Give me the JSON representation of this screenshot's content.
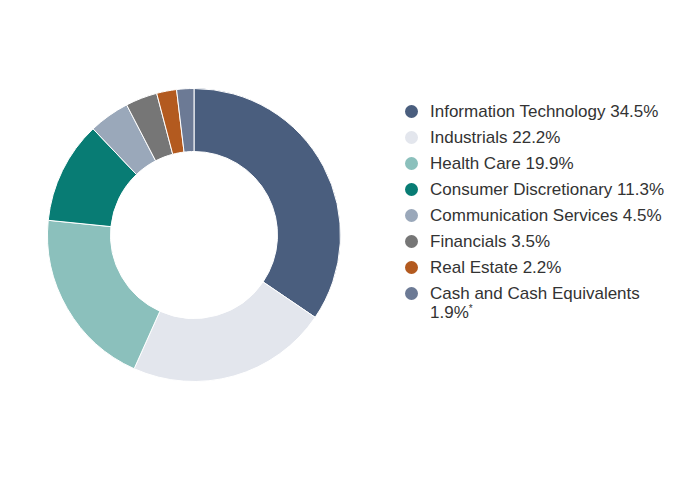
{
  "chart_data": {
    "type": "doughnut",
    "categories": [
      "Information Technology",
      "Industrials",
      "Health Care",
      "Consumer Discretionary",
      "Communication Services",
      "Financials",
      "Real Estate",
      "Cash and Cash Equivalents"
    ],
    "values": [
      34.5,
      22.2,
      19.9,
      11.3,
      4.5,
      3.5,
      2.2,
      1.9
    ],
    "value_labels": [
      "34.5%",
      "22.2%",
      "19.9%",
      "11.3%",
      "4.5%",
      "3.5%",
      "2.2%",
      "1.9%*"
    ],
    "colors": [
      "#4a5e7e",
      "#e3e6ed",
      "#8bc0bc",
      "#087c74",
      "#9aa8ba",
      "#767676",
      "#b35a1f",
      "#6c7a95"
    ],
    "legend": "right"
  }
}
